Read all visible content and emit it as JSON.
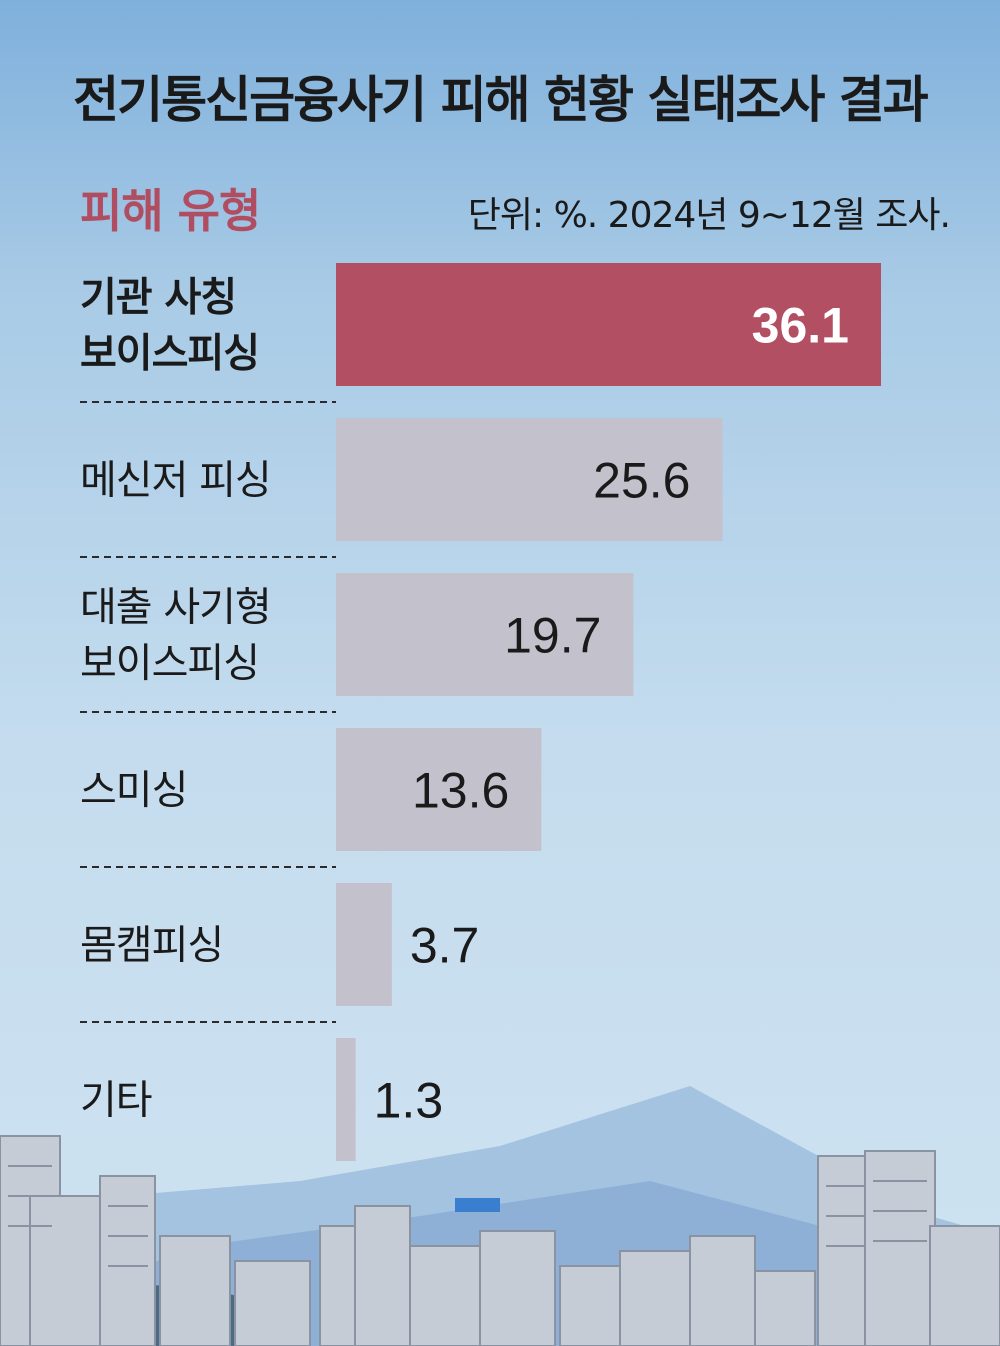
{
  "header": {
    "title": "전기통신금융사기 피해 현황 실태조사 결과",
    "section_label": "피해 유형",
    "unit_note": "단위: %. 2024년 9~12월 조사."
  },
  "chart_data": {
    "type": "bar",
    "orientation": "horizontal",
    "title": "전기통신금융사기 피해 현황 실태조사 결과",
    "subtitle": "피해 유형",
    "unit": "%",
    "categories": [
      [
        "기관 사칭",
        "보이스피싱"
      ],
      [
        "메신저 피싱"
      ],
      [
        "대출 사기형",
        "보이스피싱"
      ],
      [
        "스미싱"
      ],
      [
        "몸캠피싱"
      ],
      [
        "기타"
      ]
    ],
    "values": [
      36.1,
      25.6,
      19.7,
      13.6,
      3.7,
      1.3
    ],
    "value_labels": [
      "36.1",
      "25.6",
      "19.7",
      "13.6",
      "3.7",
      "1.3"
    ],
    "highlight_index": 0,
    "xlim": [
      0,
      36.1
    ],
    "grid": false,
    "legend": "none"
  },
  "colors": {
    "highlight_bar": "#b24f62",
    "bar": "#c3c1cc",
    "highlight_text": "#b04d61",
    "sky_top": "#7fb0dc",
    "sky_bottom": "#cfe3f1",
    "mountain_far": "#9ec0df",
    "mountain_near": "#8fb0d6",
    "buildings": "#c9cfd8"
  }
}
